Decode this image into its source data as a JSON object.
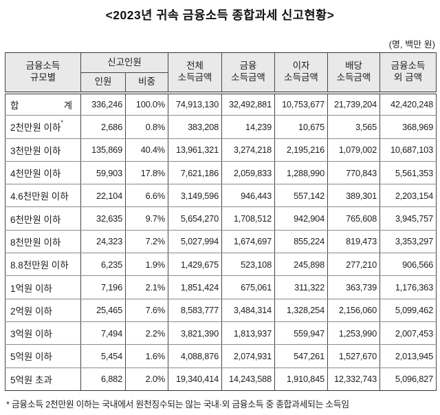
{
  "title": "<2023년 귀속 금융소득 종합과세 신고현황>",
  "unit_note": "(명, 백만 원)",
  "table": {
    "header": {
      "scale_col": "금융소득\n규모별",
      "reported_group": "신고인원",
      "sub_people": "인원",
      "sub_ratio": "비중",
      "total_income": "전체\n소득금액",
      "financial_income": "금융\n소득금액",
      "interest_income": "이자\n소득금액",
      "dividend_income": "배당\n소득금액",
      "non_financial_income": "금융소득\n외 금액"
    },
    "rows": [
      {
        "label": "합 계",
        "justify": true,
        "people": "336,246",
        "ratio": "100.0%",
        "total": "74,913,130",
        "financial": "32,492,881",
        "interest": "10,753,677",
        "dividend": "21,739,204",
        "other": "42,420,248"
      },
      {
        "label": "2천만원 이하",
        "label_sup": "*",
        "people": "2,686",
        "ratio": "0.8%",
        "total": "383,208",
        "financial": "14,239",
        "interest": "10,675",
        "dividend": "3,565",
        "other": "368,969"
      },
      {
        "label": "3천만원 이하",
        "people": "135,869",
        "ratio": "40.4%",
        "total": "13,961,321",
        "financial": "3,274,218",
        "interest": "2,195,216",
        "dividend": "1,079,002",
        "other": "10,687,103"
      },
      {
        "label": "4천만원 이하",
        "people": "59,903",
        "ratio": "17.8%",
        "total": "7,621,186",
        "financial": "2,059,833",
        "interest": "1,288,990",
        "dividend": "770,843",
        "other": "5,561,353"
      },
      {
        "label": "4.6천만원 이하",
        "people": "22,104",
        "ratio": "6.6%",
        "total": "3,149,596",
        "financial": "946,443",
        "interest": "557,142",
        "dividend": "389,301",
        "other": "2,203,154"
      },
      {
        "label": "6천만원 이하",
        "people": "32,635",
        "ratio": "9.7%",
        "total": "5,654,270",
        "financial": "1,708,512",
        "interest": "942,904",
        "dividend": "765,608",
        "other": "3,945,757"
      },
      {
        "label": "8천만원 이하",
        "people": "24,323",
        "ratio": "7.2%",
        "total": "5,027,994",
        "financial": "1,674,697",
        "interest": "855,224",
        "dividend": "819,473",
        "other": "3,353,297"
      },
      {
        "label": "8.8천만원 이하",
        "people": "6,235",
        "ratio": "1.9%",
        "total": "1,429,675",
        "financial": "523,108",
        "interest": "245,898",
        "dividend": "277,210",
        "other": "906,566"
      },
      {
        "label": "1억원 이하",
        "people": "7,196",
        "ratio": "2.1%",
        "total": "1,851,424",
        "financial": "675,061",
        "interest": "311,322",
        "dividend": "363,739",
        "other": "1,176,363"
      },
      {
        "label": "2억원 이하",
        "people": "25,465",
        "ratio": "7.6%",
        "total": "8,583,777",
        "financial": "3,484,314",
        "interest": "1,328,254",
        "dividend": "2,156,060",
        "other": "5,099,462"
      },
      {
        "label": "3억원 이하",
        "people": "7,494",
        "ratio": "2.2%",
        "total": "3,821,390",
        "financial": "1,813,937",
        "interest": "559,947",
        "dividend": "1,253,990",
        "other": "2,007,453"
      },
      {
        "label": "5억원 이하",
        "people": "5,454",
        "ratio": "1.6%",
        "total": "4,088,876",
        "financial": "2,074,931",
        "interest": "547,261",
        "dividend": "1,527,670",
        "other": "2,013,945"
      },
      {
        "label": "5억원 초과",
        "people": "6,882",
        "ratio": "2.0%",
        "total": "19,340,414",
        "financial": "14,243,588",
        "interest": "1,910,845",
        "dividend": "12,332,743",
        "other": "5,096,827"
      }
    ]
  },
  "footnote": "* 금융소득 2천만원 이하는 국내에서 원천징수되는 않는 국내·외 금융소득 중 종합과세되는 소득임"
}
